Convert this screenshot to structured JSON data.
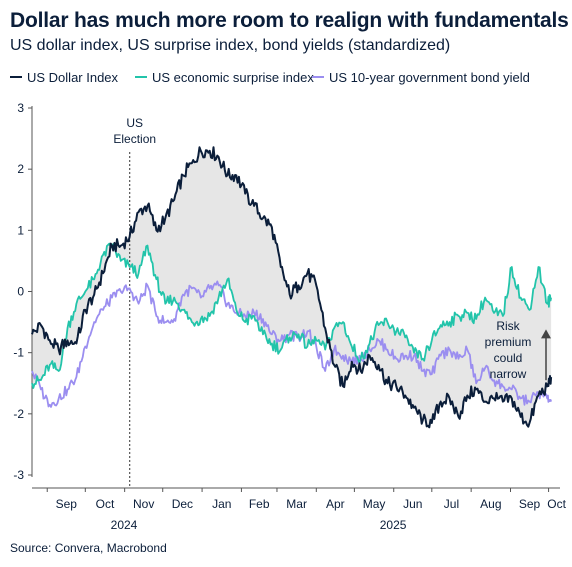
{
  "title": "Dollar has much more room to realign with fundamentals",
  "subtitle": "US dollar index, US surprise index, bond yields (standardized)",
  "source": "Source: Convera, Macrobond",
  "chart_data": {
    "type": "line",
    "title": "Dollar has much more room to realign with fundamentals",
    "subtitle": "US dollar index, US surprise index, bond yields (standardized)",
    "xlabel": "",
    "ylabel": "",
    "ylim": [
      -3,
      3
    ],
    "y_ticks": [
      "3",
      "2",
      "1",
      "0",
      "-1",
      "-2",
      "-3"
    ],
    "x_tick_labels": [
      "Sep",
      "Oct",
      "Nov",
      "Dec",
      "Jan",
      "Feb",
      "Mar",
      "Apr",
      "May",
      "Jun",
      "Jul",
      "Aug",
      "Sep",
      "Oct"
    ],
    "year_labels": [
      "2024",
      "2025"
    ],
    "x_start": "2024-08-20",
    "x_end": "2025-10-10",
    "grid": false,
    "legend_position": "top",
    "shaded_area": "between US Dollar Index and US economic surprise index",
    "series": [
      {
        "name": "US Dollar Index",
        "color": "#0b1e3a",
        "points": [
          [
            "2024-08-20",
            -0.7
          ],
          [
            "2024-08-27",
            -0.55
          ],
          [
            "2024-09-03",
            -0.8
          ],
          [
            "2024-09-10",
            -0.95
          ],
          [
            "2024-09-17",
            -0.8
          ],
          [
            "2024-09-24",
            -0.85
          ],
          [
            "2024-10-01",
            -0.3
          ],
          [
            "2024-10-08",
            -0.05
          ],
          [
            "2024-10-15",
            0.3
          ],
          [
            "2024-10-22",
            0.75
          ],
          [
            "2024-10-29",
            0.75
          ],
          [
            "2024-11-05",
            0.9
          ],
          [
            "2024-11-12",
            1.3
          ],
          [
            "2024-11-19",
            1.4
          ],
          [
            "2024-11-26",
            1.0
          ],
          [
            "2024-12-03",
            1.2
          ],
          [
            "2024-12-10",
            1.5
          ],
          [
            "2024-12-17",
            1.9
          ],
          [
            "2024-12-24",
            2.1
          ],
          [
            "2024-12-31",
            2.3
          ],
          [
            "2025-01-07",
            2.3
          ],
          [
            "2025-01-14",
            2.2
          ],
          [
            "2025-01-21",
            1.9
          ],
          [
            "2025-01-28",
            1.9
          ],
          [
            "2025-02-04",
            1.6
          ],
          [
            "2025-02-11",
            1.4
          ],
          [
            "2025-02-18",
            1.2
          ],
          [
            "2025-02-25",
            1.05
          ],
          [
            "2025-03-04",
            0.4
          ],
          [
            "2025-03-11",
            -0.05
          ],
          [
            "2025-03-18",
            0.1
          ],
          [
            "2025-03-25",
            0.3
          ],
          [
            "2025-04-01",
            0.1
          ],
          [
            "2025-04-08",
            -0.6
          ],
          [
            "2025-04-15",
            -1.2
          ],
          [
            "2025-04-22",
            -1.55
          ],
          [
            "2025-04-29",
            -1.15
          ],
          [
            "2025-05-06",
            -1.3
          ],
          [
            "2025-05-13",
            -1.05
          ],
          [
            "2025-05-20",
            -1.2
          ],
          [
            "2025-05-27",
            -1.5
          ],
          [
            "2025-06-03",
            -1.55
          ],
          [
            "2025-06-10",
            -1.7
          ],
          [
            "2025-06-17",
            -1.9
          ],
          [
            "2025-06-24",
            -2.1
          ],
          [
            "2025-07-01",
            -2.15
          ],
          [
            "2025-07-08",
            -1.8
          ],
          [
            "2025-07-15",
            -1.75
          ],
          [
            "2025-07-22",
            -2.05
          ],
          [
            "2025-07-29",
            -1.7
          ],
          [
            "2025-08-05",
            -1.6
          ],
          [
            "2025-08-12",
            -1.8
          ],
          [
            "2025-08-19",
            -1.75
          ],
          [
            "2025-08-26",
            -1.8
          ],
          [
            "2025-09-02",
            -1.75
          ],
          [
            "2025-09-09",
            -2.05
          ],
          [
            "2025-09-16",
            -2.15
          ],
          [
            "2025-09-23",
            -1.7
          ],
          [
            "2025-09-30",
            -1.55
          ],
          [
            "2025-10-03",
            -1.4
          ]
        ]
      },
      {
        "name": "US economic surprise index",
        "color": "#22c4aa",
        "points": [
          [
            "2024-08-20",
            -1.5
          ],
          [
            "2024-08-27",
            -1.45
          ],
          [
            "2024-09-03",
            -1.2
          ],
          [
            "2024-09-10",
            -1.3
          ],
          [
            "2024-09-17",
            -0.6
          ],
          [
            "2024-09-24",
            -0.2
          ],
          [
            "2024-10-01",
            0.0
          ],
          [
            "2024-10-08",
            0.2
          ],
          [
            "2024-10-15",
            0.6
          ],
          [
            "2024-10-22",
            0.75
          ],
          [
            "2024-10-29",
            0.5
          ],
          [
            "2024-11-05",
            0.4
          ],
          [
            "2024-11-12",
            0.3
          ],
          [
            "2024-11-19",
            0.75
          ],
          [
            "2024-11-26",
            0.2
          ],
          [
            "2024-12-03",
            -0.2
          ],
          [
            "2024-12-10",
            -0.1
          ],
          [
            "2024-12-17",
            -0.3
          ],
          [
            "2024-12-24",
            -0.5
          ],
          [
            "2024-12-31",
            -0.45
          ],
          [
            "2025-01-07",
            -0.4
          ],
          [
            "2025-01-14",
            -0.1
          ],
          [
            "2025-01-21",
            0.2
          ],
          [
            "2025-01-28",
            -0.3
          ],
          [
            "2025-02-04",
            -0.5
          ],
          [
            "2025-02-11",
            -0.4
          ],
          [
            "2025-02-18",
            -0.7
          ],
          [
            "2025-02-25",
            -0.85
          ],
          [
            "2025-03-04",
            -0.95
          ],
          [
            "2025-03-11",
            -0.75
          ],
          [
            "2025-03-18",
            -0.7
          ],
          [
            "2025-03-25",
            -0.9
          ],
          [
            "2025-04-01",
            -0.8
          ],
          [
            "2025-04-08",
            -0.95
          ],
          [
            "2025-04-15",
            -0.6
          ],
          [
            "2025-04-22",
            -0.5
          ],
          [
            "2025-04-29",
            -0.9
          ],
          [
            "2025-05-06",
            -1.1
          ],
          [
            "2025-05-13",
            -0.85
          ],
          [
            "2025-05-20",
            -0.55
          ],
          [
            "2025-05-27",
            -0.5
          ],
          [
            "2025-06-03",
            -0.65
          ],
          [
            "2025-06-10",
            -0.75
          ],
          [
            "2025-06-17",
            -1.0
          ],
          [
            "2025-06-24",
            -1.1
          ],
          [
            "2025-07-01",
            -0.8
          ],
          [
            "2025-07-08",
            -0.55
          ],
          [
            "2025-07-15",
            -0.5
          ],
          [
            "2025-07-22",
            -0.4
          ],
          [
            "2025-07-29",
            -0.35
          ],
          [
            "2025-08-05",
            -0.45
          ],
          [
            "2025-08-12",
            -0.1
          ],
          [
            "2025-08-19",
            -0.35
          ],
          [
            "2025-08-26",
            -0.4
          ],
          [
            "2025-09-02",
            0.4
          ],
          [
            "2025-09-09",
            -0.1
          ],
          [
            "2025-09-16",
            -0.3
          ],
          [
            "2025-09-23",
            0.4
          ],
          [
            "2025-09-30",
            -0.2
          ],
          [
            "2025-10-03",
            -0.1
          ]
        ]
      },
      {
        "name": "US 10-year government bond yield",
        "color": "#9b8ef0",
        "points": [
          [
            "2024-08-20",
            -1.3
          ],
          [
            "2024-08-27",
            -1.6
          ],
          [
            "2024-09-03",
            -1.85
          ],
          [
            "2024-09-10",
            -1.75
          ],
          [
            "2024-09-17",
            -1.6
          ],
          [
            "2024-09-24",
            -1.4
          ],
          [
            "2024-10-01",
            -0.9
          ],
          [
            "2024-10-08",
            -0.5
          ],
          [
            "2024-10-15",
            -0.3
          ],
          [
            "2024-10-22",
            -0.1
          ],
          [
            "2024-10-29",
            0.0
          ],
          [
            "2024-11-05",
            0.05
          ],
          [
            "2024-11-12",
            -0.2
          ],
          [
            "2024-11-19",
            0.1
          ],
          [
            "2024-11-26",
            -0.4
          ],
          [
            "2024-12-03",
            -0.5
          ],
          [
            "2024-12-10",
            -0.45
          ],
          [
            "2024-12-17",
            -0.05
          ],
          [
            "2024-12-24",
            0.05
          ],
          [
            "2024-12-31",
            -0.1
          ],
          [
            "2025-01-07",
            0.05
          ],
          [
            "2025-01-14",
            0.1
          ],
          [
            "2025-01-21",
            -0.2
          ],
          [
            "2025-01-28",
            -0.35
          ],
          [
            "2025-02-04",
            -0.4
          ],
          [
            "2025-02-11",
            -0.35
          ],
          [
            "2025-02-18",
            -0.45
          ],
          [
            "2025-02-25",
            -0.7
          ],
          [
            "2025-03-04",
            -0.8
          ],
          [
            "2025-03-11",
            -0.7
          ],
          [
            "2025-03-18",
            -0.75
          ],
          [
            "2025-03-25",
            -0.65
          ],
          [
            "2025-04-01",
            -0.9
          ],
          [
            "2025-04-08",
            -1.3
          ],
          [
            "2025-04-15",
            -0.95
          ],
          [
            "2025-04-22",
            -1.05
          ],
          [
            "2025-04-29",
            -1.15
          ],
          [
            "2025-05-06",
            -1.1
          ],
          [
            "2025-05-13",
            -0.95
          ],
          [
            "2025-05-20",
            -0.8
          ],
          [
            "2025-05-27",
            -0.95
          ],
          [
            "2025-06-03",
            -1.1
          ],
          [
            "2025-06-10",
            -1.05
          ],
          [
            "2025-06-17",
            -1.05
          ],
          [
            "2025-06-24",
            -1.3
          ],
          [
            "2025-07-01",
            -1.35
          ],
          [
            "2025-07-08",
            -1.05
          ],
          [
            "2025-07-15",
            -0.95
          ],
          [
            "2025-07-22",
            -1.1
          ],
          [
            "2025-07-29",
            -0.95
          ],
          [
            "2025-08-05",
            -1.5
          ],
          [
            "2025-08-12",
            -1.25
          ],
          [
            "2025-08-19",
            -1.45
          ],
          [
            "2025-08-26",
            -1.55
          ],
          [
            "2025-09-02",
            -1.6
          ],
          [
            "2025-09-09",
            -1.75
          ],
          [
            "2025-09-16",
            -1.8
          ],
          [
            "2025-09-23",
            -1.65
          ],
          [
            "2025-09-30",
            -1.75
          ],
          [
            "2025-10-03",
            -1.8
          ]
        ]
      }
    ],
    "annotations": [
      {
        "text_lines": [
          "US",
          "Election"
        ],
        "date": "2024-11-05",
        "style": "dotted vertical line"
      },
      {
        "text_lines": [
          "Risk",
          "premium",
          "could",
          "narrow"
        ],
        "arrow": "up",
        "arrow_date": "2025-10-03",
        "arrow_from": -1.45,
        "arrow_to": -0.62
      }
    ]
  }
}
